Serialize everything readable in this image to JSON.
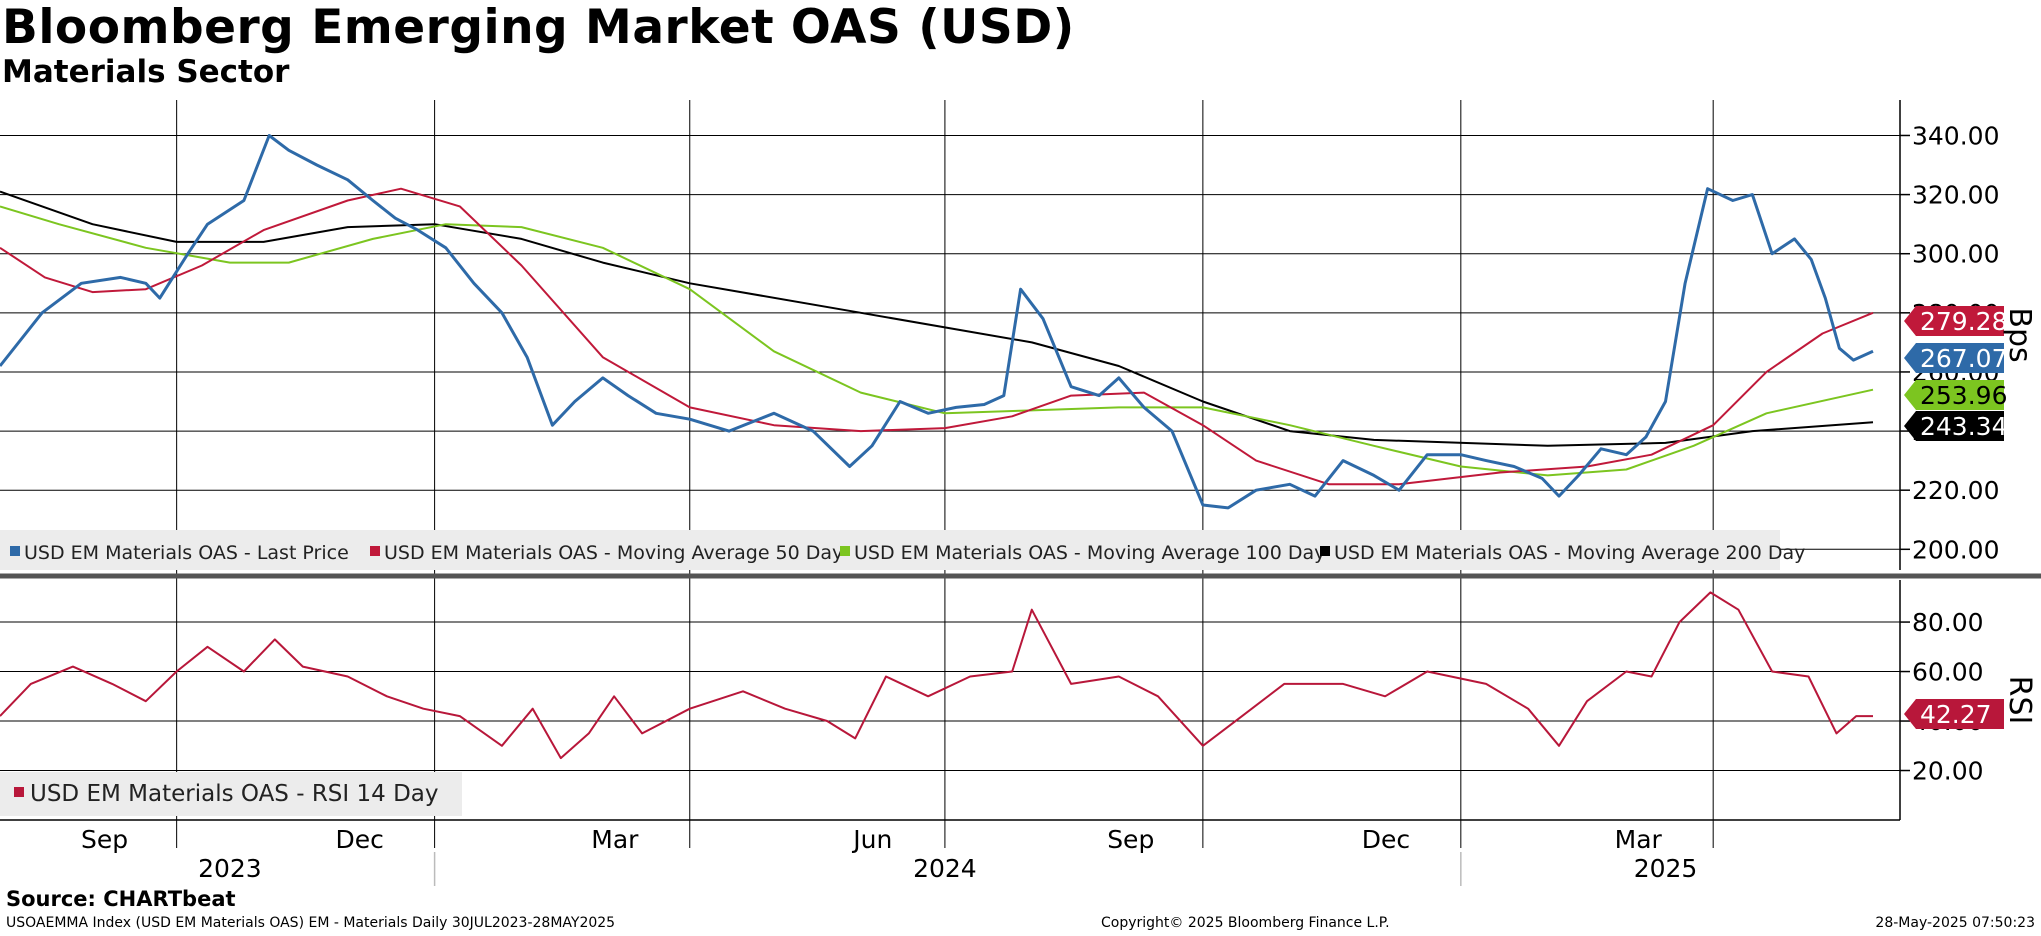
{
  "title": "Bloomberg Emerging Market OAS (USD)",
  "subtitle": "Materials Sector",
  "source": "Source: CHARTbeat",
  "footer": {
    "left": "USOAEMMA Index (USD EM Materials OAS) EM - Materials  Daily 30JUL2023-28MAY2025",
    "center": "Copyright© 2025 Bloomberg Finance L.P.",
    "right": "28-May-2025 07:50:23"
  },
  "colors": {
    "last_price": "#2e6aa8",
    "ma50": "#c0193a",
    "ma100": "#7cc520",
    "ma200": "#000000",
    "rsi": "#b8173a",
    "legend_bg": "#ececec"
  },
  "chart_data": [
    {
      "type": "line",
      "panel": "price",
      "ylabel": "Bps",
      "ylim": [
        193,
        352
      ],
      "yticks": [
        "340.00",
        "320.00",
        "300.00",
        "280.00",
        "260.00",
        "240.00",
        "220.00",
        "200.00"
      ],
      "xlim": [
        "2023-07-30",
        "2025-05-28"
      ],
      "x_months": [
        "Sep",
        "Dec",
        "Mar",
        "Jun",
        "Sep",
        "Dec",
        "Mar"
      ],
      "x_years": [
        "2023",
        "2024",
        "2025"
      ],
      "grid": true,
      "legend_placement": "bottom-left",
      "series": [
        {
          "name": "USD EM Materials OAS - Last Price",
          "color_key": "last_price",
          "last_value": "267.07",
          "points": [
            [
              "2023-07-30",
              262
            ],
            [
              "2023-08-14",
              280
            ],
            [
              "2023-08-28",
              290
            ],
            [
              "2023-09-11",
              292
            ],
            [
              "2023-09-20",
              290
            ],
            [
              "2023-09-25",
              285
            ],
            [
              "2023-10-05",
              300
            ],
            [
              "2023-10-12",
              310
            ],
            [
              "2023-10-25",
              318
            ],
            [
              "2023-11-03",
              340
            ],
            [
              "2023-11-10",
              335
            ],
            [
              "2023-11-20",
              330
            ],
            [
              "2023-12-01",
              325
            ],
            [
              "2023-12-10",
              318
            ],
            [
              "2023-12-18",
              312
            ],
            [
              "2023-12-26",
              308
            ],
            [
              "2024-01-05",
              302
            ],
            [
              "2024-01-15",
              290
            ],
            [
              "2024-01-25",
              280
            ],
            [
              "2024-02-03",
              265
            ],
            [
              "2024-02-12",
              242
            ],
            [
              "2024-02-20",
              250
            ],
            [
              "2024-03-01",
              258
            ],
            [
              "2024-03-10",
              252
            ],
            [
              "2024-03-20",
              246
            ],
            [
              "2024-04-01",
              244
            ],
            [
              "2024-04-15",
              240
            ],
            [
              "2024-05-01",
              246
            ],
            [
              "2024-05-15",
              240
            ],
            [
              "2024-05-28",
              228
            ],
            [
              "2024-06-05",
              235
            ],
            [
              "2024-06-15",
              250
            ],
            [
              "2024-06-25",
              246
            ],
            [
              "2024-07-05",
              248
            ],
            [
              "2024-07-15",
              249
            ],
            [
              "2024-07-22",
              252
            ],
            [
              "2024-07-28",
              288
            ],
            [
              "2024-08-05",
              278
            ],
            [
              "2024-08-15",
              255
            ],
            [
              "2024-08-25",
              252
            ],
            [
              "2024-09-01",
              258
            ],
            [
              "2024-09-10",
              248
            ],
            [
              "2024-09-20",
              240
            ],
            [
              "2024-10-01",
              215
            ],
            [
              "2024-10-10",
              214
            ],
            [
              "2024-10-20",
              220
            ],
            [
              "2024-11-01",
              222
            ],
            [
              "2024-11-10",
              218
            ],
            [
              "2024-11-20",
              230
            ],
            [
              "2024-12-01",
              225
            ],
            [
              "2024-12-10",
              220
            ],
            [
              "2024-12-20",
              232
            ],
            [
              "2025-01-01",
              232
            ],
            [
              "2025-01-10",
              230
            ],
            [
              "2025-01-20",
              228
            ],
            [
              "2025-01-30",
              224
            ],
            [
              "2025-02-05",
              218
            ],
            [
              "2025-02-12",
              225
            ],
            [
              "2025-02-20",
              234
            ],
            [
              "2025-03-01",
              232
            ],
            [
              "2025-03-08",
              238
            ],
            [
              "2025-03-15",
              250
            ],
            [
              "2025-03-22",
              290
            ],
            [
              "2025-03-30",
              322
            ],
            [
              "2025-04-08",
              318
            ],
            [
              "2025-04-15",
              320
            ],
            [
              "2025-04-22",
              300
            ],
            [
              "2025-04-30",
              305
            ],
            [
              "2025-05-06",
              298
            ],
            [
              "2025-05-11",
              285
            ],
            [
              "2025-05-16",
              268
            ],
            [
              "2025-05-21",
              264
            ],
            [
              "2025-05-28",
              267
            ]
          ]
        },
        {
          "name": "USD EM Materials OAS - Moving Average 50 Day",
          "color_key": "ma50",
          "last_value": "279.28",
          "points": [
            [
              "2023-07-30",
              302
            ],
            [
              "2023-08-15",
              292
            ],
            [
              "2023-09-01",
              287
            ],
            [
              "2023-09-20",
              288
            ],
            [
              "2023-10-10",
              296
            ],
            [
              "2023-11-01",
              308
            ],
            [
              "2023-12-01",
              318
            ],
            [
              "2023-12-20",
              322
            ],
            [
              "2024-01-10",
              316
            ],
            [
              "2024-02-01",
              296
            ],
            [
              "2024-03-01",
              265
            ],
            [
              "2024-04-01",
              248
            ],
            [
              "2024-05-01",
              242
            ],
            [
              "2024-06-01",
              240
            ],
            [
              "2024-07-01",
              241
            ],
            [
              "2024-07-25",
              245
            ],
            [
              "2024-08-15",
              252
            ],
            [
              "2024-09-10",
              253
            ],
            [
              "2024-10-01",
              242
            ],
            [
              "2024-10-20",
              230
            ],
            [
              "2024-11-15",
              222
            ],
            [
              "2024-12-10",
              222
            ],
            [
              "2025-01-15",
              226
            ],
            [
              "2025-02-15",
              228
            ],
            [
              "2025-03-10",
              232
            ],
            [
              "2025-04-01",
              242
            ],
            [
              "2025-04-20",
              260
            ],
            [
              "2025-05-10",
              273
            ],
            [
              "2025-05-28",
              280
            ]
          ]
        },
        {
          "name": "USD EM Materials OAS - Moving Average 100 Day",
          "color_key": "ma100",
          "last_value": "253.96",
          "points": [
            [
              "2023-07-30",
              316
            ],
            [
              "2023-08-20",
              310
            ],
            [
              "2023-09-20",
              302
            ],
            [
              "2023-10-20",
              297
            ],
            [
              "2023-11-10",
              297
            ],
            [
              "2023-12-10",
              305
            ],
            [
              "2024-01-05",
              310
            ],
            [
              "2024-02-01",
              309
            ],
            [
              "2024-03-01",
              302
            ],
            [
              "2024-04-01",
              288
            ],
            [
              "2024-05-01",
              267
            ],
            [
              "2024-06-01",
              253
            ],
            [
              "2024-07-01",
              246
            ],
            [
              "2024-08-01",
              247
            ],
            [
              "2024-09-01",
              248
            ],
            [
              "2024-10-01",
              248
            ],
            [
              "2024-11-01",
              242
            ],
            [
              "2024-12-01",
              235
            ],
            [
              "2025-01-01",
              228
            ],
            [
              "2025-02-01",
              225
            ],
            [
              "2025-03-01",
              227
            ],
            [
              "2025-03-25",
              235
            ],
            [
              "2025-04-20",
              246
            ],
            [
              "2025-05-28",
              254
            ]
          ]
        },
        {
          "name": "USD EM Materials OAS - Moving Average 200 Day",
          "color_key": "ma200",
          "last_value": "243.34",
          "points": [
            [
              "2023-07-30",
              321
            ],
            [
              "2023-09-01",
              310
            ],
            [
              "2023-10-01",
              304
            ],
            [
              "2023-11-01",
              304
            ],
            [
              "2023-12-01",
              309
            ],
            [
              "2024-01-01",
              310
            ],
            [
              "2024-02-01",
              305
            ],
            [
              "2024-03-01",
              297
            ],
            [
              "2024-04-01",
              290
            ],
            [
              "2024-06-01",
              280
            ],
            [
              "2024-08-01",
              270
            ],
            [
              "2024-09-01",
              262
            ],
            [
              "2024-10-01",
              250
            ],
            [
              "2024-11-01",
              240
            ],
            [
              "2024-12-01",
              237
            ],
            [
              "2025-02-01",
              235
            ],
            [
              "2025-03-15",
              236
            ],
            [
              "2025-04-15",
              240
            ],
            [
              "2025-05-28",
              243
            ]
          ]
        }
      ]
    },
    {
      "type": "line",
      "panel": "rsi",
      "ylabel": "RSI",
      "ylim": [
        0,
        97
      ],
      "yticks": [
        "80.00",
        "60.00",
        "40.00",
        "20.00"
      ],
      "xlim": [
        "2023-07-30",
        "2025-05-28"
      ],
      "grid": true,
      "legend_placement": "bottom-left",
      "series": [
        {
          "name": "USD EM Materials OAS - RSI 14 Day",
          "color_key": "rsi",
          "last_value": "42.27",
          "points": [
            [
              "2023-07-30",
              42
            ],
            [
              "2023-08-10",
              55
            ],
            [
              "2023-08-25",
              62
            ],
            [
              "2023-09-08",
              55
            ],
            [
              "2023-09-20",
              48
            ],
            [
              "2023-10-01",
              60
            ],
            [
              "2023-10-12",
              70
            ],
            [
              "2023-10-25",
              60
            ],
            [
              "2023-11-05",
              73
            ],
            [
              "2023-11-15",
              62
            ],
            [
              "2023-12-01",
              58
            ],
            [
              "2023-12-15",
              50
            ],
            [
              "2023-12-28",
              45
            ],
            [
              "2024-01-10",
              42
            ],
            [
              "2024-01-25",
              30
            ],
            [
              "2024-02-05",
              45
            ],
            [
              "2024-02-15",
              25
            ],
            [
              "2024-02-25",
              35
            ],
            [
              "2024-03-05",
              50
            ],
            [
              "2024-03-15",
              35
            ],
            [
              "2024-04-01",
              45
            ],
            [
              "2024-04-20",
              52
            ],
            [
              "2024-05-05",
              45
            ],
            [
              "2024-05-20",
              40
            ],
            [
              "2024-05-30",
              33
            ],
            [
              "2024-06-10",
              58
            ],
            [
              "2024-06-25",
              50
            ],
            [
              "2024-07-10",
              58
            ],
            [
              "2024-07-25",
              60
            ],
            [
              "2024-08-01",
              85
            ],
            [
              "2024-08-15",
              55
            ],
            [
              "2024-09-01",
              58
            ],
            [
              "2024-09-15",
              50
            ],
            [
              "2024-10-01",
              30
            ],
            [
              "2024-10-15",
              42
            ],
            [
              "2024-10-30",
              55
            ],
            [
              "2024-11-20",
              55
            ],
            [
              "2024-12-05",
              50
            ],
            [
              "2024-12-20",
              60
            ],
            [
              "2025-01-10",
              55
            ],
            [
              "2025-01-25",
              45
            ],
            [
              "2025-02-05",
              30
            ],
            [
              "2025-02-15",
              48
            ],
            [
              "2025-03-01",
              60
            ],
            [
              "2025-03-10",
              58
            ],
            [
              "2025-03-20",
              80
            ],
            [
              "2025-03-31",
              92
            ],
            [
              "2025-04-10",
              85
            ],
            [
              "2025-04-22",
              60
            ],
            [
              "2025-05-05",
              58
            ],
            [
              "2025-05-15",
              35
            ],
            [
              "2025-05-22",
              42
            ],
            [
              "2025-05-28",
              42
            ]
          ]
        }
      ]
    }
  ]
}
